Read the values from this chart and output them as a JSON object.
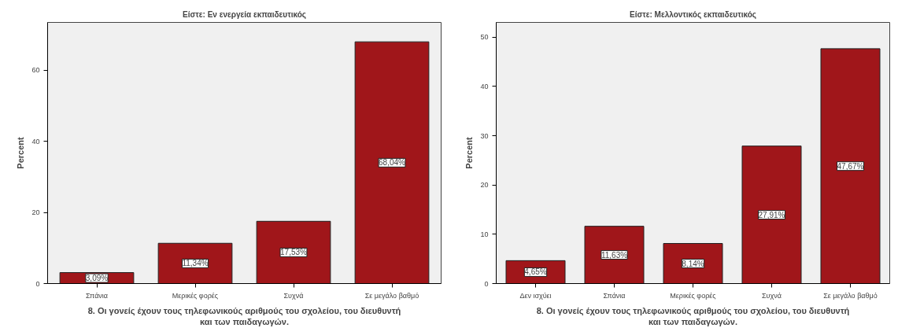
{
  "chart_data": [
    {
      "type": "bar",
      "title": "Είστε: Εν ενεργεία εκπαιδευτικός",
      "xlabel": "8. Οι γονείς έχουν τους τηλεφωνικούς αριθμούς του σχολείου, του διευθυντή\nκαι των παιδαγωγών.",
      "ylabel": "Percent",
      "categories": [
        "Σπάνια",
        "Μερικές φορές",
        "Συχνά",
        "Σε μεγάλο βαθμό"
      ],
      "values": [
        3.09,
        11.34,
        17.53,
        68.04
      ],
      "value_labels": [
        "3,09%",
        "11,34%",
        "17,53%",
        "68,04%"
      ],
      "color": "#a0161a",
      "ylim": [
        0,
        73.5
      ],
      "yticks": [
        0,
        20,
        40,
        60
      ],
      "grid": false
    },
    {
      "type": "bar",
      "title": "Είστε: Μελλοντικός εκπαιδευτικός",
      "xlabel": "8. Οι γονείς έχουν τους τηλεφωνικούς αριθμούς του σχολείου, του διευθυντή\nκαι των παιδαγωγών.",
      "ylabel": "Percent",
      "categories": [
        "Δεν ισχύει",
        "Σπάνια",
        "Μερικές φορές",
        "Συχνά",
        "Σε μεγάλο βαθμό"
      ],
      "values": [
        4.65,
        11.63,
        8.14,
        27.91,
        47.67
      ],
      "value_labels": [
        "4,65%",
        "11,63%",
        "8,14%",
        "27,91%",
        "47,67%"
      ],
      "color": "#a0161a",
      "ylim": [
        0,
        53
      ],
      "yticks": [
        0,
        10,
        20,
        30,
        40,
        50
      ],
      "grid": false
    }
  ]
}
